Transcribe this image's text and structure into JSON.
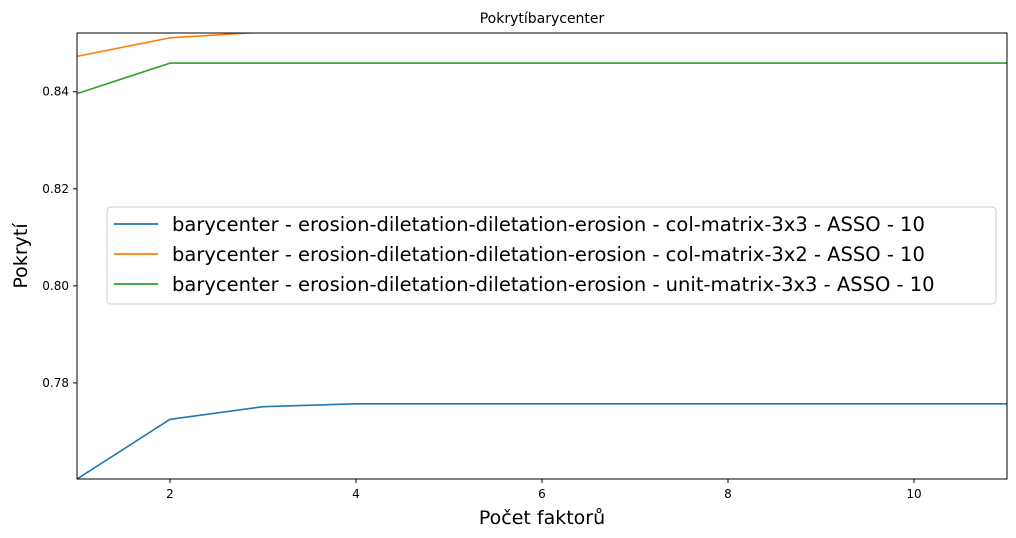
{
  "chart_data": {
    "type": "line",
    "title": "Pokrytíbarycenter",
    "xlabel": "Počet faktorů",
    "ylabel": "Pokrytí",
    "xlim": [
      1,
      11
    ],
    "ylim": [
      0.7602,
      0.8521
    ],
    "xticks": [
      2,
      4,
      6,
      8,
      10
    ],
    "xtick_labels": [
      "2",
      "4",
      "6",
      "8",
      "10"
    ],
    "yticks": [
      0.78,
      0.8,
      0.82,
      0.84
    ],
    "ytick_labels": [
      "0.78",
      "0.80",
      "0.82",
      "0.84"
    ],
    "grid": false,
    "legend_position": "center-left",
    "x": [
      1,
      2,
      3,
      4,
      5,
      6,
      7,
      8,
      9,
      10,
      11
    ],
    "series": [
      {
        "name": "barycenter - erosion-diletation-diletation-erosion - col-matrix-3x3 - ASSO - 10",
        "color": "#1f77b4",
        "values": [
          0.7602,
          0.7725,
          0.7751,
          0.7757,
          0.7757,
          0.7757,
          0.7757,
          0.7757,
          0.7757,
          0.7757,
          0.7757
        ]
      },
      {
        "name": "barycenter - erosion-diletation-diletation-erosion - col-matrix-3x2 - ASSO - 10",
        "color": "#ff7f0e",
        "values": [
          0.8473,
          0.8511,
          0.8523,
          0.8525,
          0.8525,
          0.8525,
          0.8525,
          0.8525,
          0.8525,
          0.8525,
          0.8525
        ]
      },
      {
        "name": "barycenter - erosion-diletation-diletation-erosion - unit-matrix-3x3 - ASSO - 10",
        "color": "#2ca02c",
        "values": [
          0.8396,
          0.8459,
          0.8459,
          0.8459,
          0.8459,
          0.8459,
          0.8459,
          0.8459,
          0.8459,
          0.8459,
          0.8459
        ]
      }
    ]
  }
}
